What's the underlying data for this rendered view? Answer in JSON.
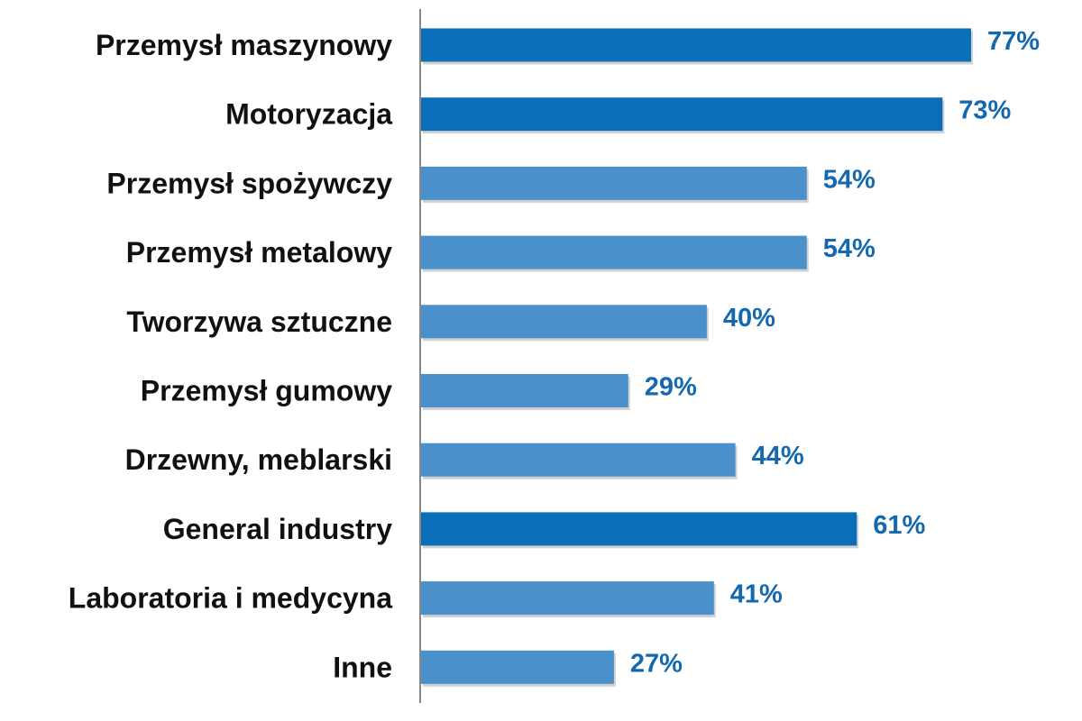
{
  "chart_data": {
    "type": "bar",
    "orientation": "horizontal",
    "categories": [
      "Przemysł maszynowy",
      "Motoryzacja",
      "Przemysł spożywczy",
      "Przemysł metalowy",
      "Tworzywa sztuczne",
      "Przemysł gumowy",
      "Drzewny, meblarski",
      "General industry",
      "Laboratoria i medycyna",
      "Inne"
    ],
    "values": [
      77,
      73,
      54,
      54,
      40,
      29,
      44,
      61,
      41,
      27
    ],
    "value_labels": [
      "77%",
      "73%",
      "54%",
      "54%",
      "40%",
      "29%",
      "44%",
      "61%",
      "41%",
      "27%"
    ],
    "highlighted": [
      true,
      true,
      false,
      false,
      false,
      false,
      false,
      true,
      false,
      false
    ],
    "xlim": [
      0,
      90
    ],
    "grid": false,
    "legend": "none",
    "colors": {
      "highlight_bar": "#0A6EB8",
      "normal_bar": "#4A90CA",
      "value_label": "#1368B0",
      "category_label": "#111111",
      "axis": "#888888"
    }
  }
}
